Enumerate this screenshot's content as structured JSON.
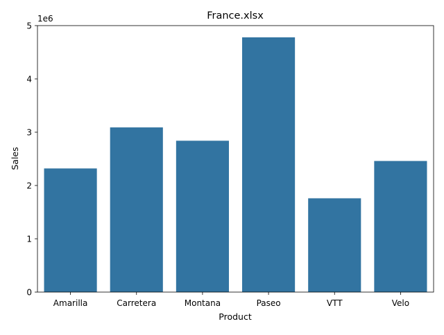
{
  "chart_data": {
    "type": "bar",
    "title": "France.xlsx",
    "xlabel": "Product",
    "ylabel": "Sales",
    "offset_label": "1e6",
    "categories": [
      "Amarilla",
      "Carretera",
      "Montana",
      "Paseo",
      "VTT",
      "Velo"
    ],
    "values": [
      2320000,
      3090000,
      2840000,
      4780000,
      1760000,
      2460000
    ],
    "ylim": [
      0,
      5000000
    ],
    "yticks": [
      0,
      1,
      2,
      3,
      4,
      5
    ],
    "ytick_labels": [
      "0",
      "1",
      "2",
      "3",
      "4",
      "5"
    ],
    "grid": false,
    "legend": "none",
    "bar_color": "#3274a1"
  }
}
